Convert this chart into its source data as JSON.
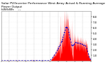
{
  "title_line1": "Solar PV/Inverter Performance West Array Actual & Running Average Power Output",
  "title_line2": "kW/kWh    ---",
  "bg_color": "#ffffff",
  "plot_bg_color": "#ffffff",
  "grid_color": "#aaaaaa",
  "bar_color": "#ff0000",
  "avg_color": "#0000cc",
  "text_color": "#000000",
  "title_fontsize": 3.2,
  "tick_fontsize": 2.8,
  "num_points": 1440,
  "ylim_max": 9.0,
  "y_ticks": [
    1.0,
    2.0,
    3.0,
    4.0,
    5.0,
    6.0,
    7.0,
    8.0
  ],
  "y_tick_labels": [
    "1.0",
    "2.0",
    "3.0",
    "4.0",
    "5.0",
    "6.0",
    "7.0",
    "8.0"
  ]
}
